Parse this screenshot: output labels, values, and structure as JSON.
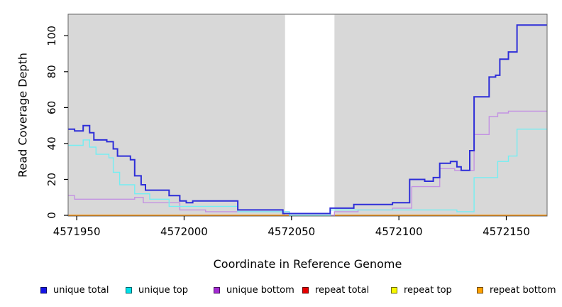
{
  "chart_data": {
    "type": "line",
    "subtype": "step",
    "title": "",
    "xlabel": "Coordinate in Reference Genome",
    "ylabel": "Read Coverage Depth",
    "xlim": [
      4571946,
      4572169
    ],
    "ylim": [
      0,
      112
    ],
    "x_ticks": [
      4571950,
      4572000,
      4572050,
      4572100,
      4572150
    ],
    "y_ticks": [
      0,
      20,
      40,
      60,
      80,
      100
    ],
    "grid": "off",
    "plot_bg": "#d8d8d8",
    "masked_region": {
      "x0": 4572047,
      "x1": 4572070,
      "color": "#ffffff"
    },
    "legend_position": "bottom",
    "series": [
      {
        "name": "unique total",
        "color": "#2e2ed8",
        "swatch": "#1414e6",
        "width": 2,
        "points": [
          [
            4571946,
            48
          ],
          [
            4571949,
            47
          ],
          [
            4571953,
            50
          ],
          [
            4571956,
            46
          ],
          [
            4571958,
            42
          ],
          [
            4571964,
            41
          ],
          [
            4571967,
            37
          ],
          [
            4571969,
            33
          ],
          [
            4571975,
            31
          ],
          [
            4571977,
            22
          ],
          [
            4571980,
            17
          ],
          [
            4571982,
            14
          ],
          [
            4571993,
            11
          ],
          [
            4571998,
            8
          ],
          [
            4572001,
            7
          ],
          [
            4572004,
            8
          ],
          [
            4572025,
            3
          ],
          [
            4572046,
            1
          ],
          [
            4572068,
            4
          ],
          [
            4572079,
            6
          ],
          [
            4572097,
            7
          ],
          [
            4572105,
            20
          ],
          [
            4572112,
            19
          ],
          [
            4572116,
            21
          ],
          [
            4572119,
            29
          ],
          [
            4572124,
            30
          ],
          [
            4572127,
            27
          ],
          [
            4572129,
            25
          ],
          [
            4572133,
            36
          ],
          [
            4572135,
            66
          ],
          [
            4572142,
            77
          ],
          [
            4572145,
            78
          ],
          [
            4572147,
            87
          ],
          [
            4572151,
            91
          ],
          [
            4572155,
            106
          ]
        ]
      },
      {
        "name": "unique top",
        "color": "#74eef2",
        "swatch": "#00e1ea",
        "width": 1.4,
        "points": [
          [
            4571946,
            39
          ],
          [
            4571953,
            42
          ],
          [
            4571956,
            38
          ],
          [
            4571959,
            34
          ],
          [
            4571965,
            32
          ],
          [
            4571967,
            24
          ],
          [
            4571970,
            17
          ],
          [
            4571977,
            12
          ],
          [
            4571984,
            9
          ],
          [
            4571993,
            5
          ],
          [
            4572025,
            2
          ],
          [
            4572049,
            0
          ],
          [
            4572068,
            3
          ],
          [
            4572127,
            2
          ],
          [
            4572135,
            21
          ],
          [
            4572146,
            30
          ],
          [
            4572151,
            33
          ],
          [
            4572155,
            48
          ]
        ]
      },
      {
        "name": "unique bottom",
        "color": "#c392e2",
        "swatch": "#a32ad2",
        "width": 1.4,
        "points": [
          [
            4571946,
            11
          ],
          [
            4571949,
            9
          ],
          [
            4571977,
            10
          ],
          [
            4571981,
            7
          ],
          [
            4571998,
            3
          ],
          [
            4572010,
            2
          ],
          [
            4572049,
            0
          ],
          [
            4572070,
            2
          ],
          [
            4572081,
            3
          ],
          [
            4572097,
            4
          ],
          [
            4572106,
            16
          ],
          [
            4572119,
            26
          ],
          [
            4572126,
            25
          ],
          [
            4572135,
            45
          ],
          [
            4572142,
            55
          ],
          [
            4572146,
            57
          ],
          [
            4572151,
            58
          ]
        ]
      },
      {
        "name": "repeat total",
        "color": "#d40000",
        "swatch": "#e60000",
        "width": 1.4,
        "points": [
          [
            4571946,
            0
          ]
        ]
      },
      {
        "name": "repeat top",
        "color": "#f0f000",
        "swatch": "#f7f700",
        "width": 1.4,
        "points": [
          [
            4571946,
            0
          ]
        ]
      },
      {
        "name": "repeat bottom",
        "color": "#ff8c00",
        "swatch": "#ffa200",
        "width": 1.6,
        "points": [
          [
            4571946,
            0
          ]
        ]
      }
    ]
  }
}
